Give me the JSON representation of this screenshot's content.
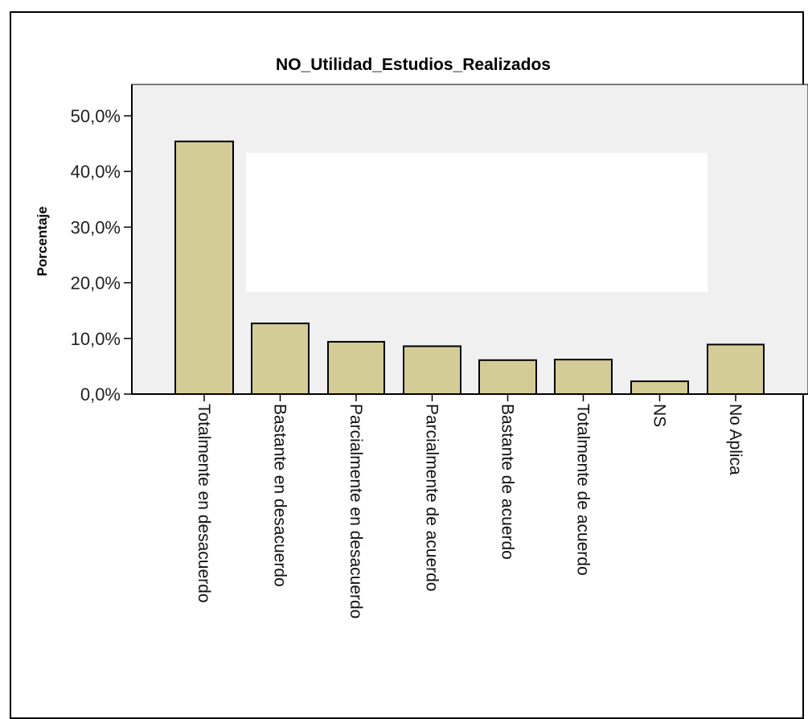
{
  "chart_data": {
    "type": "bar",
    "title": "NO_Utilidad_Estudios_Realizados",
    "ylabel": "Porcentaje",
    "xlabel": "",
    "categories": [
      "Totalmente en desacuerdo",
      "Bastante en desacuerdo",
      "Parcialmente en desacuerdo",
      "Parcialmente de acuerdo",
      "Bastante de acuerdo",
      "Totalmente de acuerdo",
      "NS",
      "No Aplica"
    ],
    "values": [
      45.4,
      12.7,
      9.4,
      8.6,
      6.1,
      6.2,
      2.3,
      8.9
    ],
    "ylim": [
      0,
      55
    ],
    "yticks": [
      0,
      10,
      20,
      30,
      40,
      50
    ],
    "ytick_labels": [
      "0,0%",
      "10,0%",
      "20,0%",
      "30,0%",
      "40,0%",
      "50,0%"
    ],
    "grid": false,
    "legend": "none",
    "colors": {
      "bar_fill": "#d4cc96",
      "bar_stroke": "#000000",
      "plot_bg": "#f0f0f0",
      "occlusion": "#ffffff"
    }
  }
}
